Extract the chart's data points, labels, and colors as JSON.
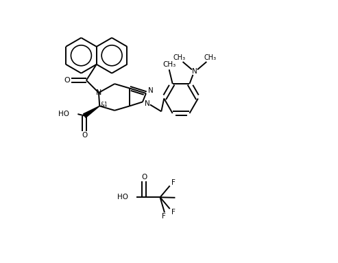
{
  "background_color": "#ffffff",
  "line_color": "#000000",
  "line_width": 1.4,
  "figsize": [
    4.93,
    3.83
  ],
  "dpi": 100,
  "xlim": [
    0,
    9.86
  ],
  "ylim": [
    0,
    7.66
  ]
}
